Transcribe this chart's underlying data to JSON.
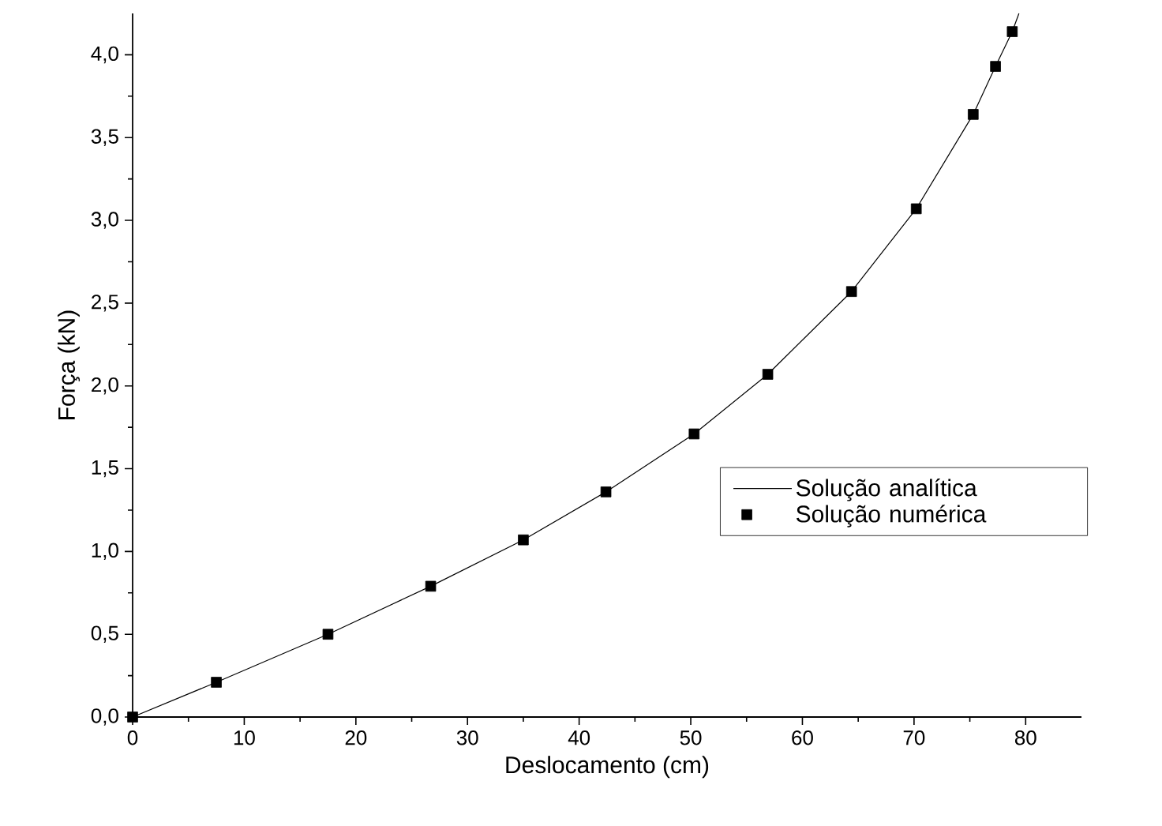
{
  "chart_data": {
    "type": "line",
    "xlabel": "Deslocamento (cm)",
    "ylabel": "Força (kN)",
    "xlim": [
      0,
      85
    ],
    "ylim": [
      0,
      4.25
    ],
    "xticks": [
      0,
      10,
      20,
      30,
      40,
      50,
      60,
      70,
      80
    ],
    "yticks": [
      {
        "value": 0,
        "label": "0,0"
      },
      {
        "value": 0.5,
        "label": "0,5"
      },
      {
        "value": 1,
        "label": "1,0"
      },
      {
        "value": 1.5,
        "label": "1,5"
      },
      {
        "value": 2,
        "label": "2,0"
      },
      {
        "value": 2.5,
        "label": "2,5"
      },
      {
        "value": 3,
        "label": "3,0"
      },
      {
        "value": 3.5,
        "label": "3,5"
      },
      {
        "value": 4,
        "label": "4,0"
      }
    ],
    "legend": "right",
    "grid": false,
    "series": [
      {
        "name": "Solução analítica",
        "color": "#000000",
        "marker": "none",
        "line_style": "solid",
        "x": [
          0,
          7.5,
          17.5,
          26.7,
          35,
          42.4,
          50.3,
          56.9,
          64.4,
          70.2,
          75.3,
          77.3,
          78.8,
          79.4
        ],
        "values": [
          0,
          0.21,
          0.5,
          0.79,
          1.07,
          1.36,
          1.71,
          2.07,
          2.57,
          3.07,
          3.64,
          3.93,
          4.14,
          4.25
        ]
      },
      {
        "name": "Solução numérica",
        "type": "scatter",
        "color": "#000000",
        "marker": "square",
        "x": [
          0,
          7.5,
          17.5,
          26.7,
          35,
          42.4,
          50.3,
          56.9,
          64.4,
          70.2,
          75.3,
          77.3,
          78.8
        ],
        "values": [
          0,
          0.21,
          0.5,
          0.79,
          1.07,
          1.36,
          1.71,
          2.07,
          2.57,
          3.07,
          3.64,
          3.93,
          4.14
        ]
      }
    ]
  }
}
